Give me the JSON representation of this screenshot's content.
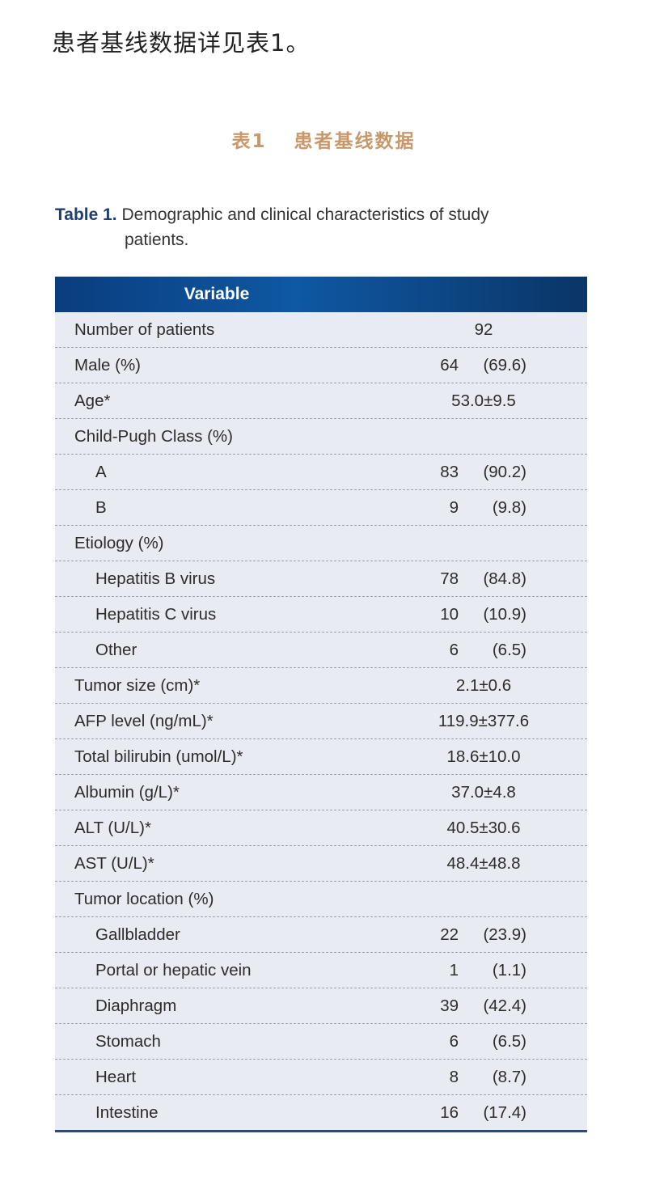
{
  "intro": "患者基线数据详见表1。",
  "cn_title": {
    "num": "表1",
    "text": "患者基线数据"
  },
  "caption": {
    "label": "Table 1.",
    "line1": "Demographic and clinical characteristics of study",
    "line2": "patients."
  },
  "header": "Variable",
  "rows": [
    {
      "label": "Number of patients",
      "value": "92"
    },
    {
      "label": "Male (%)",
      "n": "64",
      "pct": "(69.6)"
    },
    {
      "label": "Age*",
      "value": "53.0±9.5"
    },
    {
      "label": "Child-Pugh Class (%)"
    },
    {
      "label": "A",
      "n": "83",
      "pct": "(90.2)",
      "sub": true
    },
    {
      "label": "B",
      "n": "9",
      "pct": "(9.8)",
      "sub": true
    },
    {
      "label": "Etiology (%)"
    },
    {
      "label": "Hepatitis B virus",
      "n": "78",
      "pct": "(84.8)",
      "sub": true
    },
    {
      "label": "Hepatitis C virus",
      "n": "10",
      "pct": "(10.9)",
      "sub": true
    },
    {
      "label": "Other",
      "n": "6",
      "pct": "(6.5)",
      "sub": true
    },
    {
      "label": "Tumor size (cm)*",
      "value": "2.1±0.6"
    },
    {
      "label": "AFP level (ng/mL)*",
      "value": "119.9±377.6"
    },
    {
      "label": "Total bilirubin (umol/L)*",
      "value": "18.6±10.0"
    },
    {
      "label": "Albumin (g/L)*",
      "value": "37.0±4.8"
    },
    {
      "label": "ALT (U/L)*",
      "value": "40.5±30.6"
    },
    {
      "label": "AST (U/L)*",
      "value": "48.4±48.8"
    },
    {
      "label": "Tumor location (%)"
    },
    {
      "label": "Gallbladder",
      "n": "22",
      "pct": "(23.9)",
      "sub": true
    },
    {
      "label": "Portal or hepatic vein",
      "n": "1",
      "pct": "(1.1)",
      "sub": true
    },
    {
      "label": "Diaphragm",
      "n": "39",
      "pct": "(42.4)",
      "sub": true
    },
    {
      "label": "Stomach",
      "n": "6",
      "pct": "(6.5)",
      "sub": true
    },
    {
      "label": "Heart",
      "n": "8",
      "pct": "(8.7)",
      "sub": true
    },
    {
      "label": "Intestine",
      "n": "16",
      "pct": "(17.4)",
      "sub": true
    }
  ]
}
